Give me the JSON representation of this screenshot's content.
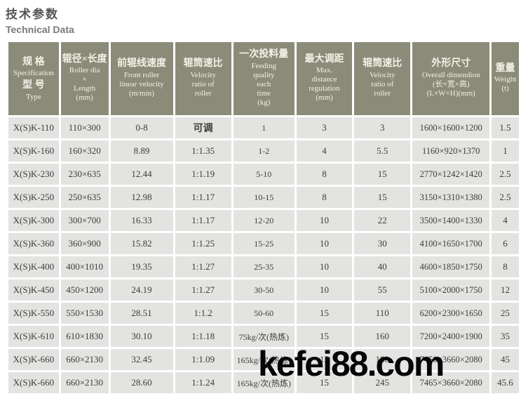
{
  "page": {
    "title_zh": "技术参数",
    "title_en": "Technical Data"
  },
  "watermark": "kefei88.com",
  "colors": {
    "header_bg": "#8b8b79",
    "header_text": "#f3f1e7",
    "row_bg": "#e3e4e1",
    "body_text": "#3c3c3c"
  },
  "table": {
    "columns": [
      {
        "zh": "规 格",
        "en": "Specification",
        "zh2": "型 号",
        "en2": "Type"
      },
      {
        "zh": "辊径×长度",
        "en": "Roller dia\n×\nLength\n(mm)"
      },
      {
        "zh": "前辊线速度",
        "en": "Front roller\nlinear velocity\n(m/min)"
      },
      {
        "zh": "辊筒速比",
        "en": "Velocity\nratio of\nroller"
      },
      {
        "zh": "一次投料量",
        "en": "Feeding\nquality\neach\ntime\n(kg)"
      },
      {
        "zh": "最大调距",
        "en": "Max.\ndistance\nregulation\n(mm)"
      },
      {
        "zh": "辊筒速比",
        "en": "Velocity\nratio of\nroller"
      },
      {
        "zh": "外形尺寸",
        "en": "Overall dimendion\n(长×宽×高)\n(L×W×H)(mm)"
      },
      {
        "zh": "重量",
        "en": "Weight\n(t)"
      }
    ],
    "rows": [
      [
        "X(S)K-110",
        "110×300",
        "0-8",
        "可调",
        "1",
        "3",
        "3",
        "1600×1600×1200",
        "1.5"
      ],
      [
        "X(S)K-160",
        "160×320",
        "8.89",
        "1:1.35",
        "1-2",
        "4",
        "5.5",
        "1160×920×1370",
        "1"
      ],
      [
        "X(S)K-230",
        "230×635",
        "12.44",
        "1:1.19",
        "5-10",
        "8",
        "15",
        "2770×1242×1420",
        "2.5"
      ],
      [
        "X(S)K-250",
        "250×635",
        "12.98",
        "1:1.17",
        "10-15",
        "8",
        "15",
        "3150×1310×1380",
        "2.5"
      ],
      [
        "X(S)K-300",
        "300×700",
        "16.33",
        "1:1.17",
        "12-20",
        "10",
        "22",
        "3500×1400×1330",
        "4"
      ],
      [
        "X(S)K-360",
        "360×900",
        "15.82",
        "1:1.25",
        "15-25",
        "10",
        "30",
        "4100×1650×1700",
        "6"
      ],
      [
        "X(S)K-400",
        "400×1010",
        "19.35",
        "1:1.27",
        "25-35",
        "10",
        "40",
        "4600×1850×1750",
        "8"
      ],
      [
        "X(S)K-450",
        "450×1200",
        "24.19",
        "1:1.27",
        "30-50",
        "10",
        "55",
        "5100×2000×1750",
        "12"
      ],
      [
        "X(S)K-550",
        "550×1530",
        "28.51",
        "1:1.2",
        "50-60",
        "15",
        "110",
        "6200×2300×1650",
        "25"
      ],
      [
        "X(S)K-610",
        "610×1830",
        "30.10",
        "1:1.18",
        "75kg/次(热炼)",
        "15",
        "160",
        "7200×2400×1900",
        "35"
      ],
      [
        "X(S)K-660",
        "660×2130",
        "32.45",
        "1:1.09",
        "165kg/次(热炼)",
        "15",
        "180",
        "7450×3660×2080",
        "45"
      ],
      [
        "X(S)K-660",
        "660×2130",
        "28.60",
        "1:1.24",
        "165kg/次(热炼)",
        "15",
        "245",
        "7465×3660×2080",
        "45.6"
      ]
    ]
  }
}
